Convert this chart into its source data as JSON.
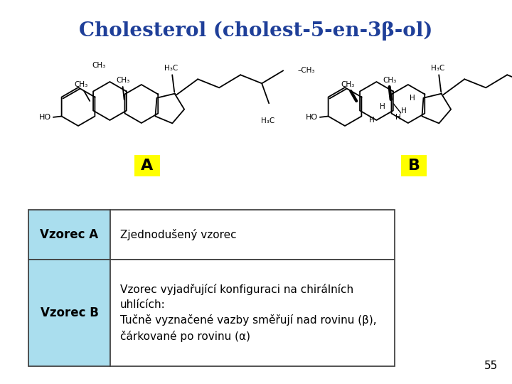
{
  "title": "Cholesterol (cholest-5-en-3β-ol)",
  "title_color": "#1F3F99",
  "title_fontsize": 20,
  "title_bold": true,
  "bg_color": "#FFFFFF",
  "label_A": "A",
  "label_B": "B",
  "label_color": "#000000",
  "label_bg": "#FFFF00",
  "label_fontsize": 16,
  "table_rows": [
    {
      "col1": "Vzorec A",
      "col2": "Zjednodušený vzorec",
      "col1_bg": "#AADEEE",
      "col2_bg": "#FFFFFF"
    },
    {
      "col1": "Vzorec B",
      "col2": "Vzorec vyjadřující konfiguraci na chirálních\nuhlících:\nTučně vyznačené vazby směřují nad rovinu (β),\nčárkované po rovinu (α)",
      "col1_bg": "#AADEEE",
      "col2_bg": "#FFFFFF"
    }
  ],
  "page_number": "55",
  "cell_fontsize": 11
}
